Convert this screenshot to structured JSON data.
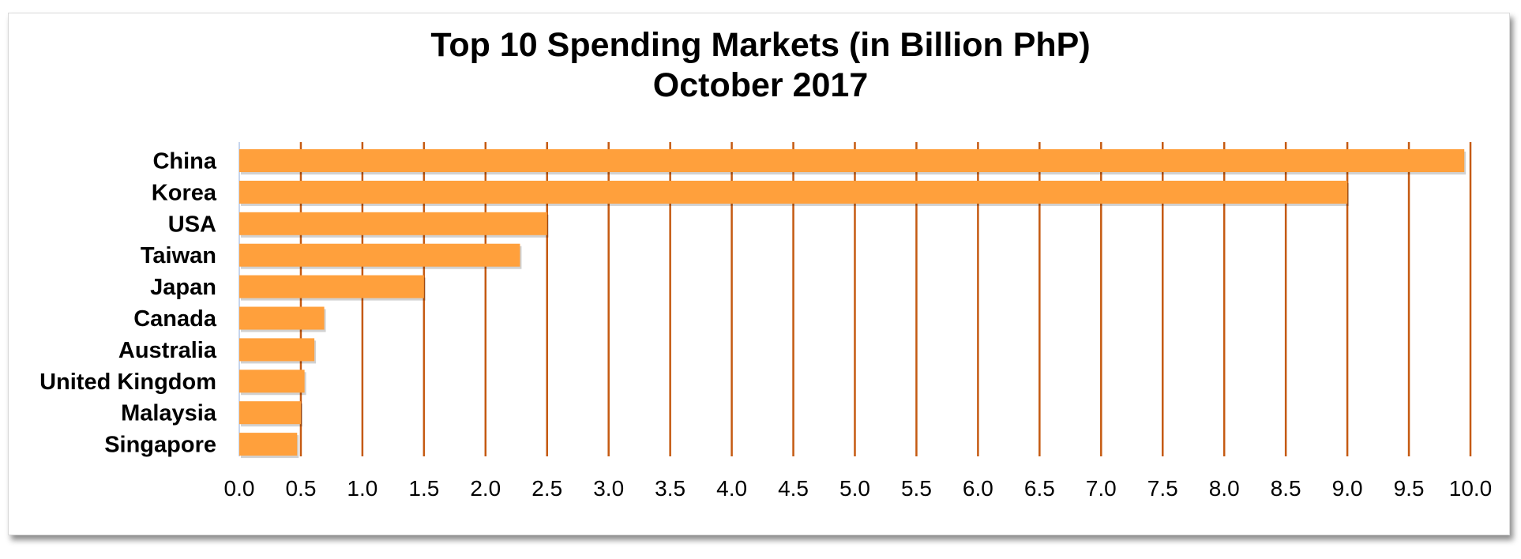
{
  "chart_data": {
    "type": "bar",
    "orientation": "horizontal",
    "title": "Top 10 Spending Markets (in Billion PhP)",
    "subtitle": "October 2017",
    "categories": [
      "China",
      "Korea",
      "USA",
      "Taiwan",
      "Japan",
      "Canada",
      "Australia",
      "United Kingdom",
      "Malaysia",
      "Singapore"
    ],
    "values": [
      9.95,
      9.0,
      2.5,
      2.28,
      1.5,
      0.69,
      0.61,
      0.53,
      0.5,
      0.47
    ],
    "xlim": [
      0,
      10
    ],
    "x_ticks": [
      "0.0",
      "0.5",
      "1.0",
      "1.5",
      "2.0",
      "2.5",
      "3.0",
      "3.5",
      "4.0",
      "4.5",
      "5.0",
      "5.5",
      "6.0",
      "6.5",
      "7.0",
      "7.5",
      "8.0",
      "8.5",
      "9.0",
      "9.5",
      "10.0"
    ],
    "grid": "vertical",
    "bar_color": "#FFA03C",
    "grid_color": "#C55A11",
    "legend": "none"
  }
}
